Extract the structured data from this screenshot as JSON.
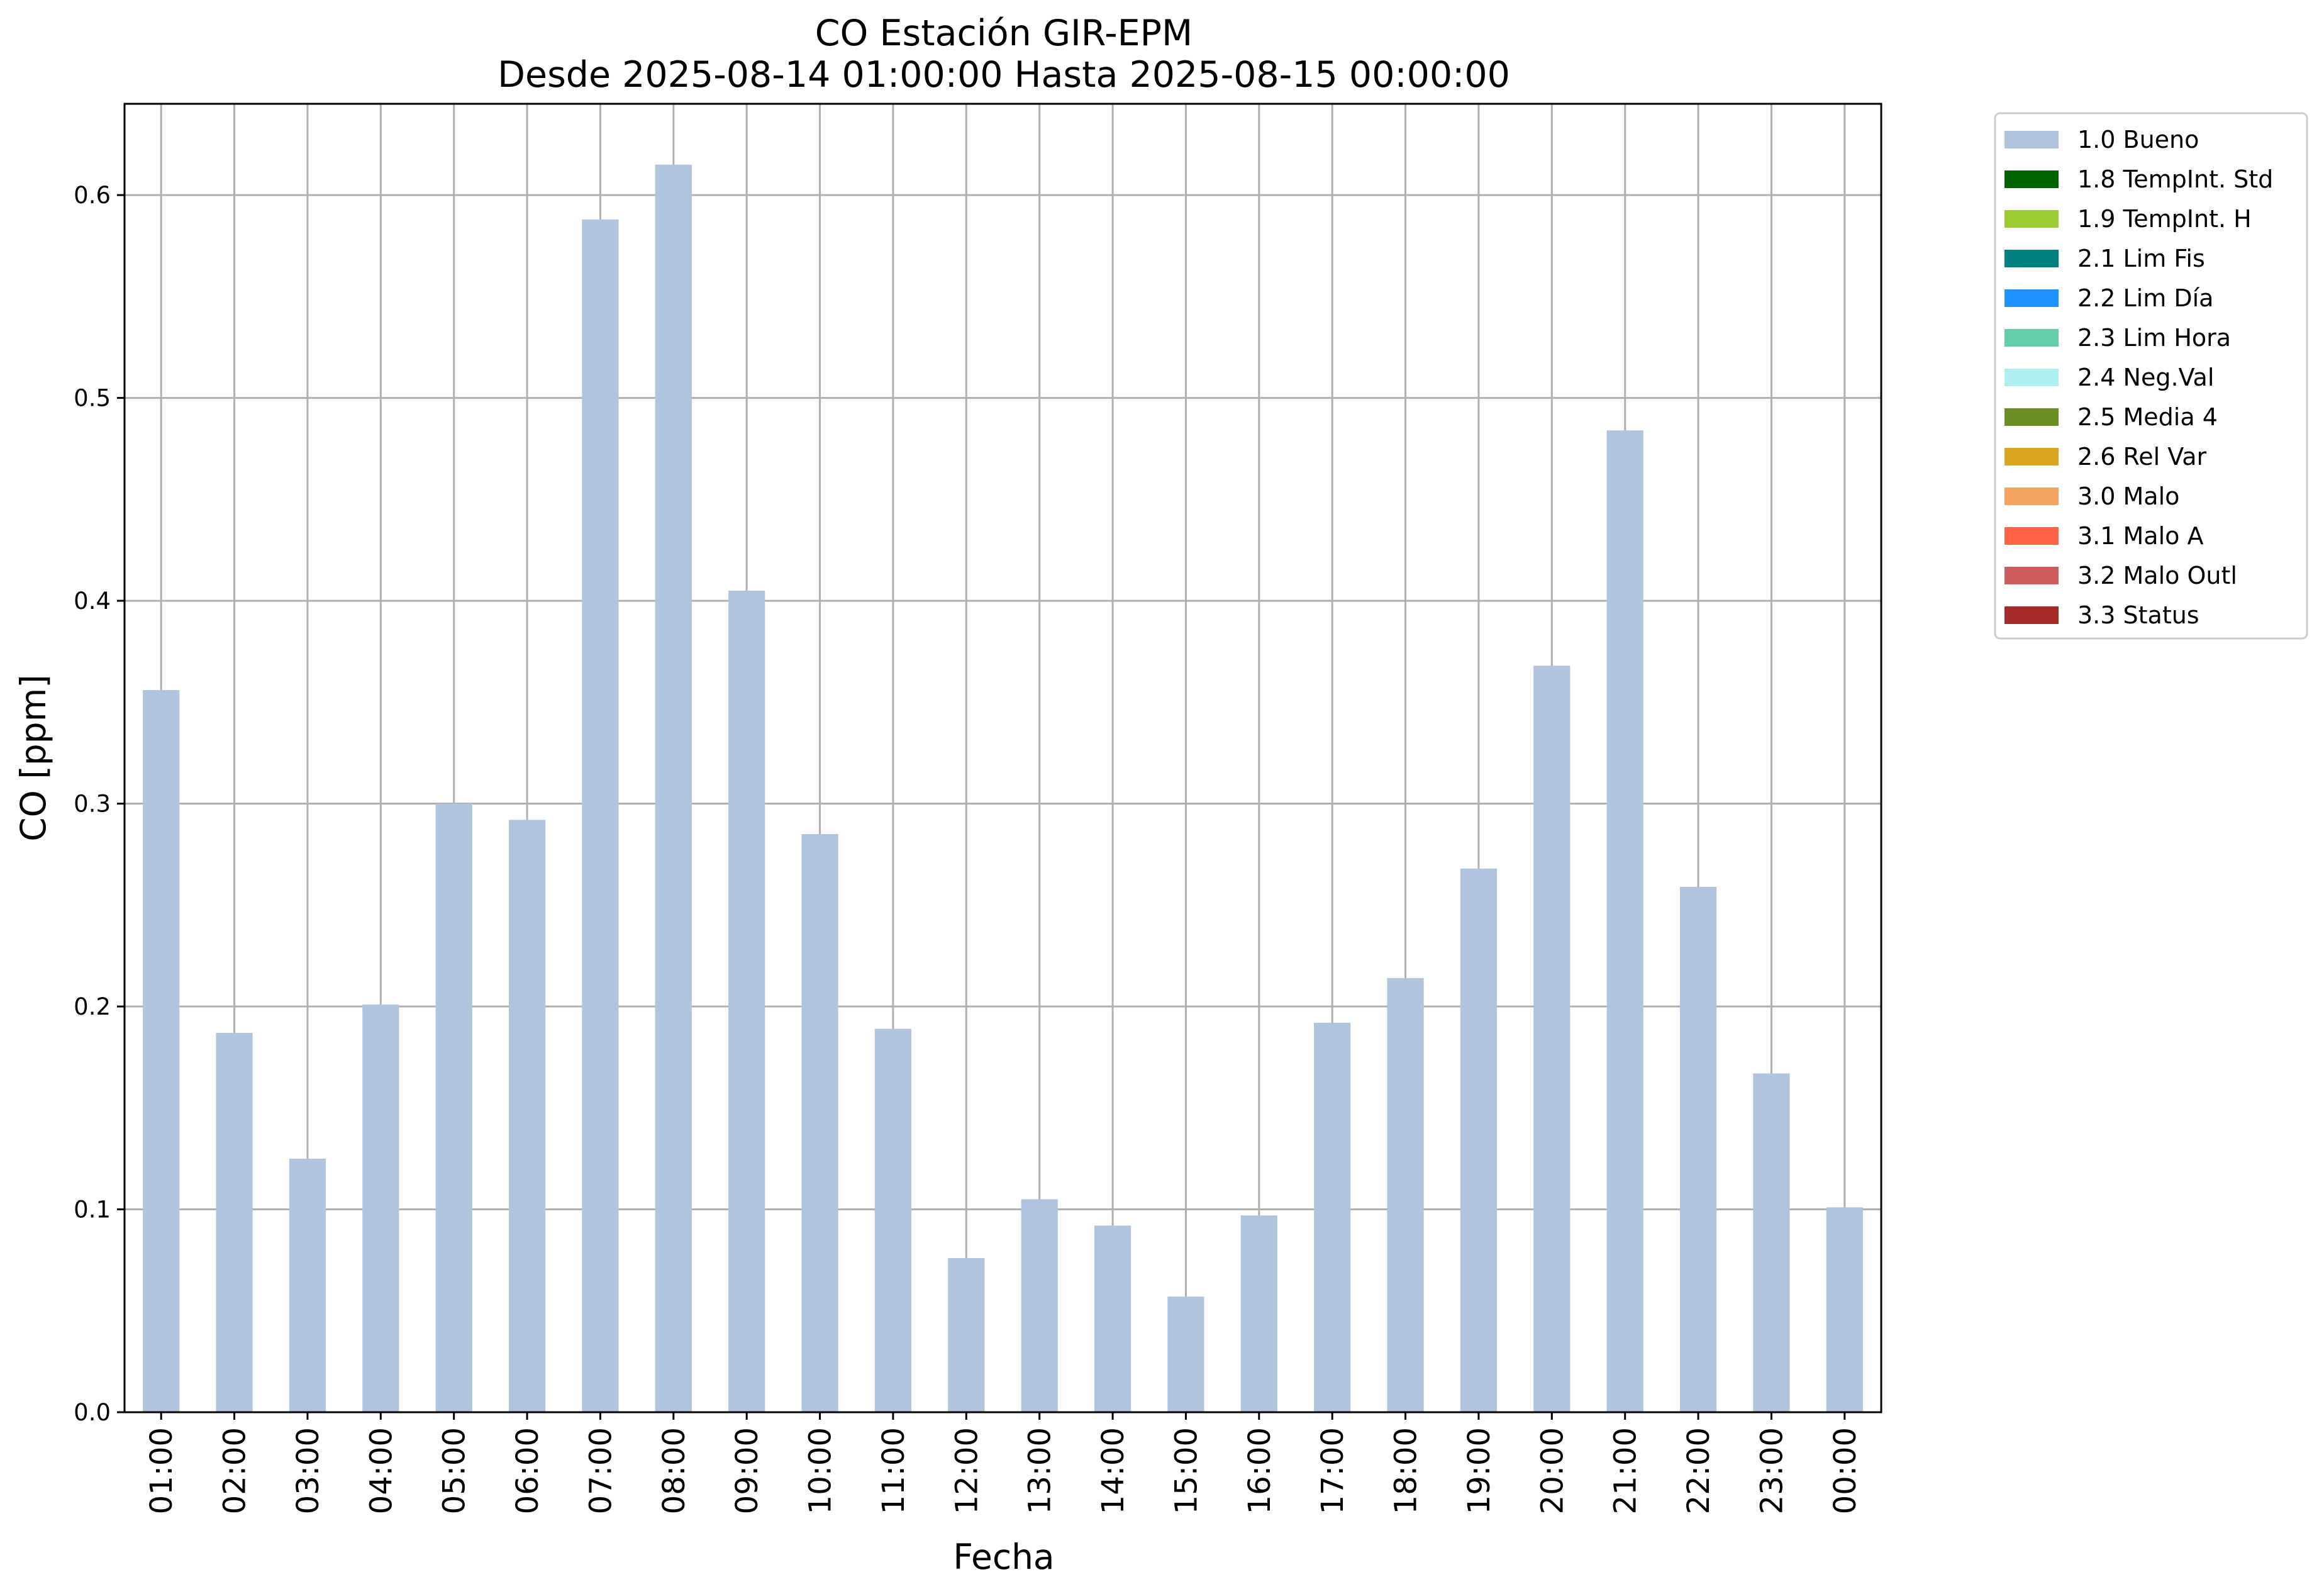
{
  "chart_data": {
    "type": "bar",
    "title": "CO Estación GIR-EPM",
    "subtitle": "Desde 2025-08-14 01:00:00 Hasta 2025-08-15 00:00:00",
    "xlabel": "Fecha",
    "ylabel": "CO [ppm]",
    "ylim": [
      0,
      0.645
    ],
    "yticks": [
      "0.0",
      "0.1",
      "0.2",
      "0.3",
      "0.4",
      "0.5",
      "0.6"
    ],
    "grid": true,
    "legend_position": "outside-top-right",
    "categories": [
      "01:00",
      "02:00",
      "03:00",
      "04:00",
      "05:00",
      "06:00",
      "07:00",
      "08:00",
      "09:00",
      "10:00",
      "11:00",
      "12:00",
      "13:00",
      "14:00",
      "15:00",
      "16:00",
      "17:00",
      "18:00",
      "19:00",
      "20:00",
      "21:00",
      "22:00",
      "23:00",
      "00:00"
    ],
    "series": [
      {
        "name": "1.0 Bueno",
        "color": "#b0c4de",
        "values": [
          0.356,
          0.187,
          0.125,
          0.201,
          0.3,
          0.292,
          0.588,
          0.615,
          0.405,
          0.285,
          0.189,
          0.076,
          0.105,
          0.092,
          0.057,
          0.097,
          0.192,
          0.214,
          0.268,
          0.368,
          0.484,
          0.259,
          0.167,
          0.101
        ]
      }
    ],
    "legend": [
      {
        "label": "1.0 Bueno",
        "color": "#b0c4de"
      },
      {
        "label": "1.8 TempInt. Std",
        "color": "#006400"
      },
      {
        "label": "1.9 TempInt. H",
        "color": "#9acd32"
      },
      {
        "label": "2.1 Lim Fis",
        "color": "#008080"
      },
      {
        "label": "2.2 Lim Día",
        "color": "#1e90ff"
      },
      {
        "label": "2.3 Lim Hora",
        "color": "#66cdaa"
      },
      {
        "label": "2.4 Neg.Val",
        "color": "#afeeee"
      },
      {
        "label": "2.5 Media 4",
        "color": "#6b8e23"
      },
      {
        "label": "2.6 Rel Var",
        "color": "#daa520"
      },
      {
        "label": "3.0 Malo",
        "color": "#f4a460"
      },
      {
        "label": "3.1 Malo A",
        "color": "#ff6347"
      },
      {
        "label": "3.2 Malo Outl",
        "color": "#cd5c5c"
      },
      {
        "label": "3.3 Status",
        "color": "#a52a2a"
      }
    ]
  }
}
